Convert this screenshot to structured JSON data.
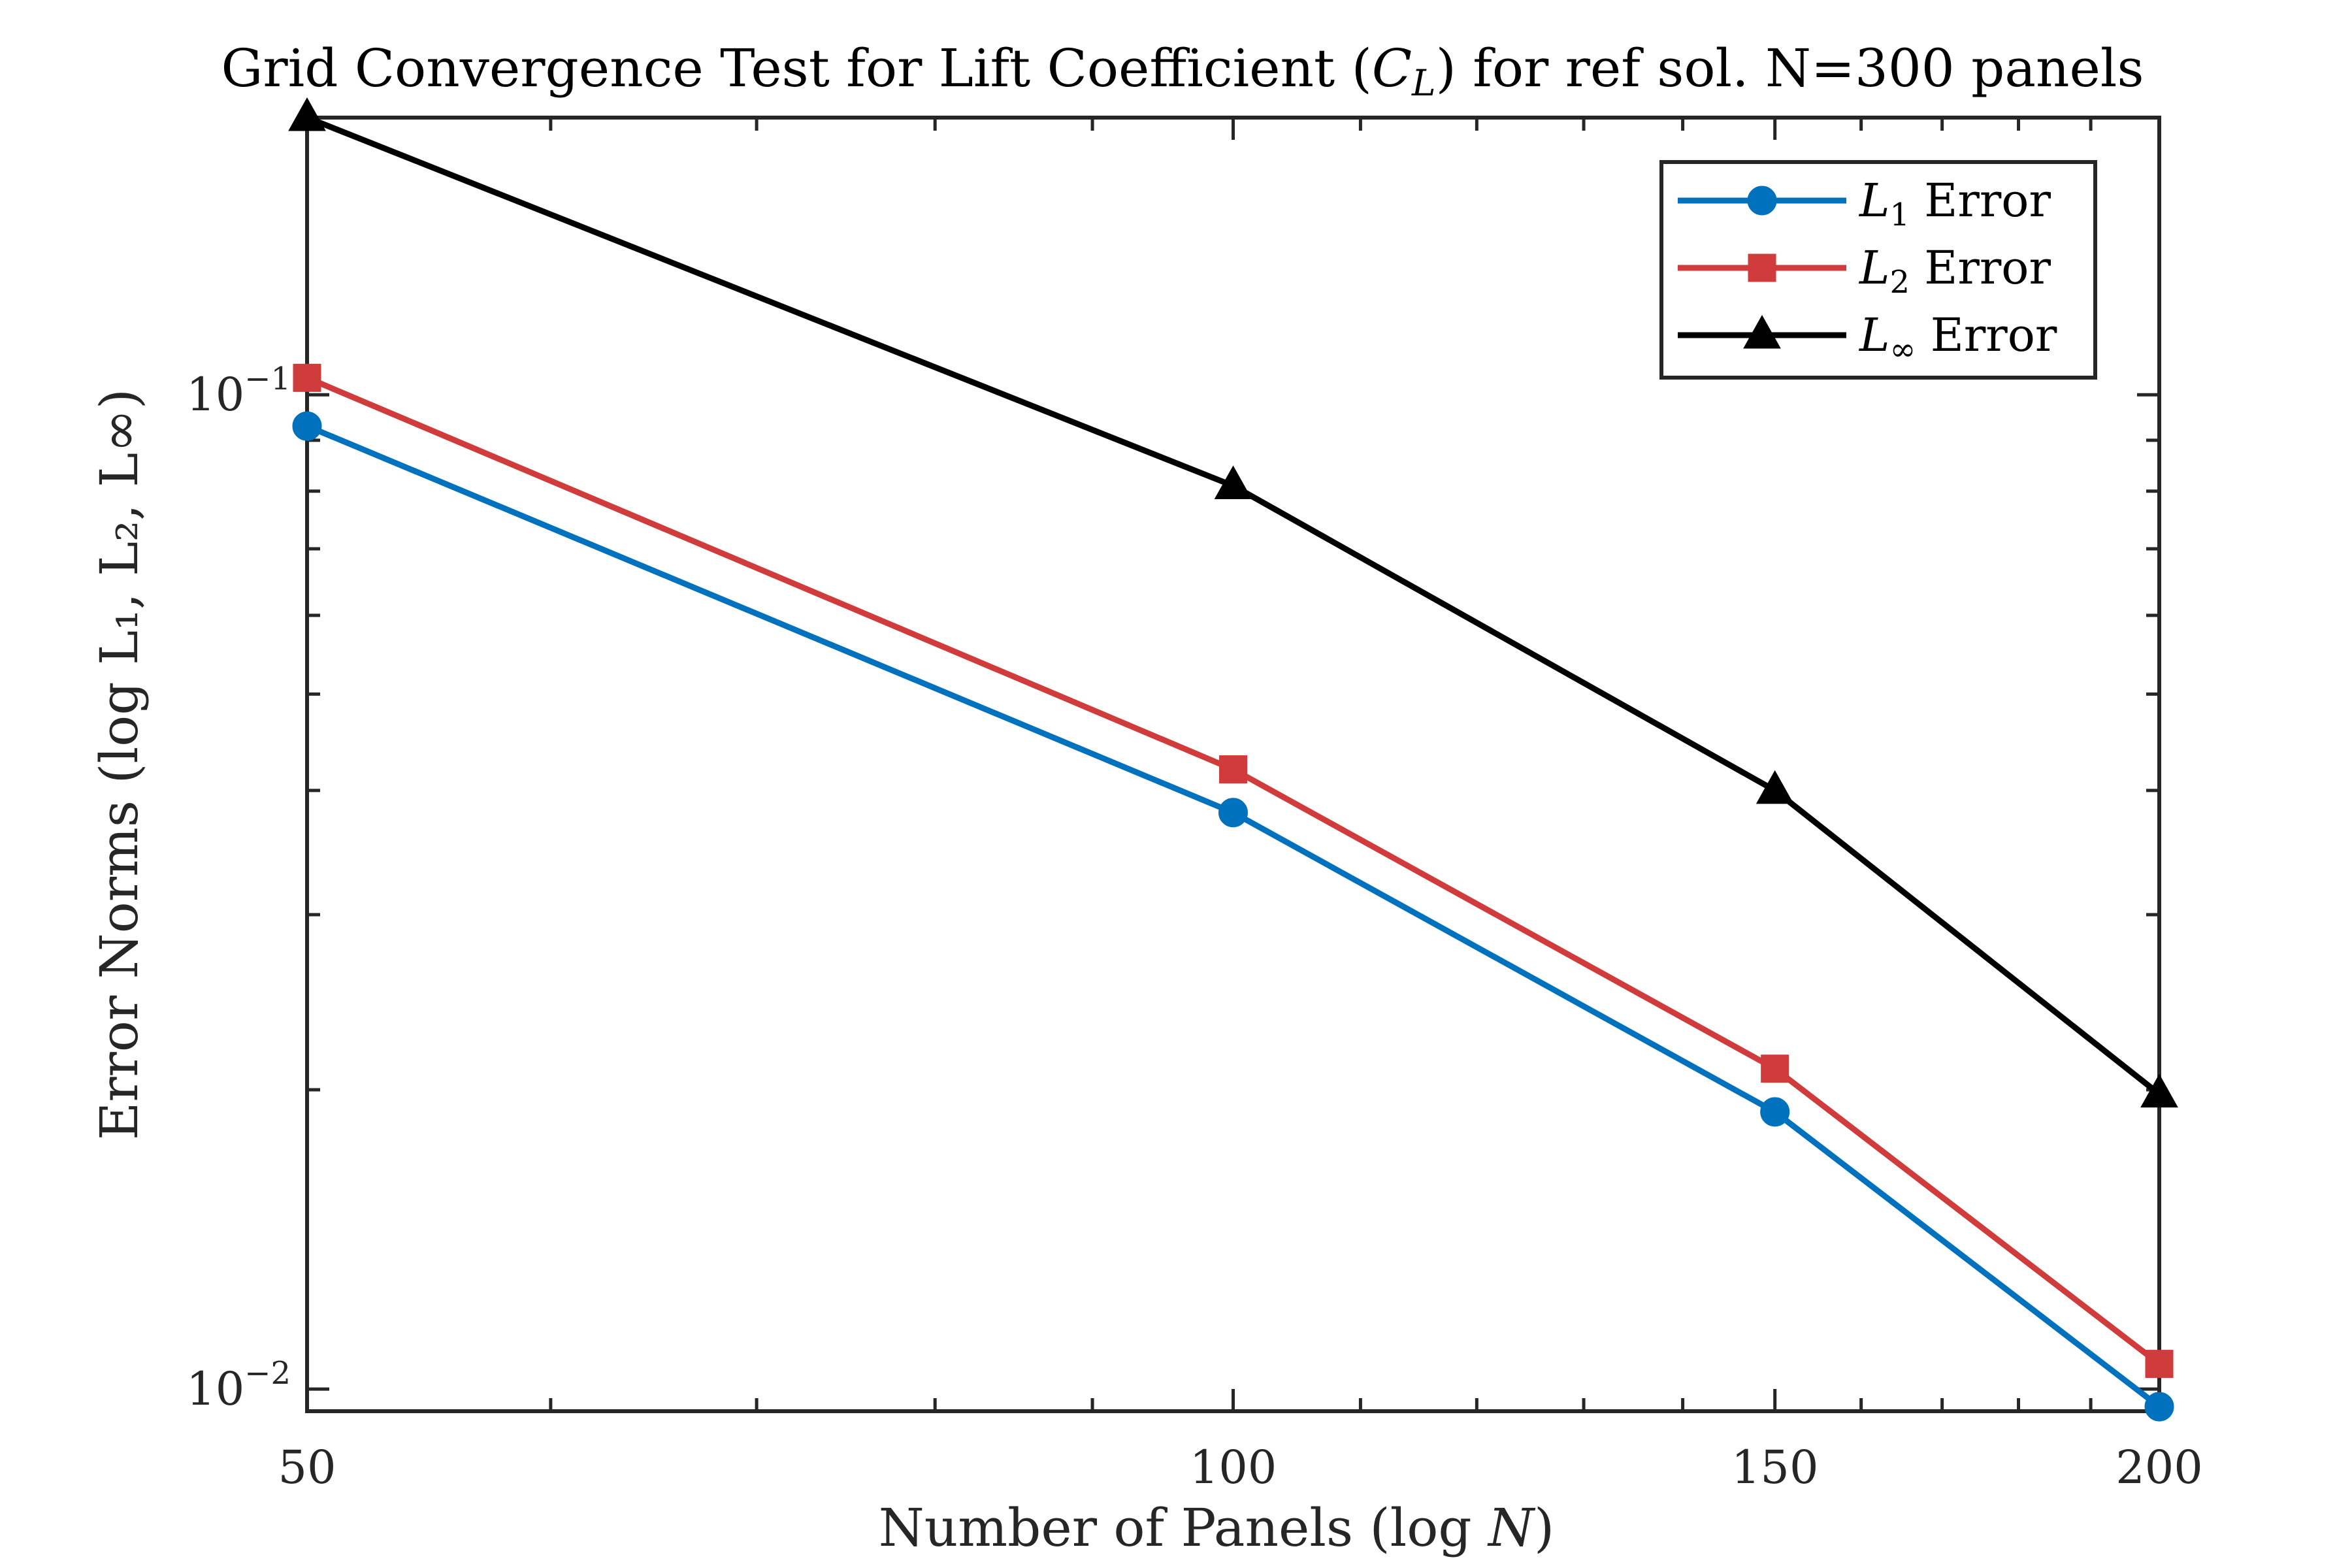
{
  "chart_data": {
    "type": "line",
    "title": "Grid Convergence Test for Lift Coefficient (C_L) for ref sol. N=300 panels",
    "title_parts": {
      "before": "Grid Convergence Test for Lift Coefficient (",
      "symbol": "C",
      "symbol_sub": "L",
      "after": ") for ref sol. N=300 panels"
    },
    "xlabel": "Number of Panels (log N)",
    "xlabel_parts": {
      "before": "Number of Panels (log ",
      "symbol": "N",
      "after": ")"
    },
    "ylabel": "Error Norms (log L1, L2, L∞)",
    "ylabel_text": "Error Norms (log L₁, L₂, L∞)",
    "x_scale": "log",
    "y_scale": "log",
    "xlim": [
      50,
      200
    ],
    "ylim": [
      0.0095,
      0.19
    ],
    "x": [
      50,
      100,
      150,
      200
    ],
    "x_tick_labels": [
      "50",
      "100",
      "150",
      "200"
    ],
    "y_ticks": [
      {
        "value": 0.1,
        "base": "10",
        "exp": "−1"
      },
      {
        "value": 0.01,
        "base": "10",
        "exp": "−2"
      }
    ],
    "grid": false,
    "legend_position": "top-right",
    "series": [
      {
        "name": "L1 Error",
        "name_main": "L",
        "name_sub": "1",
        "name_rest": " Error",
        "color": "#0072bd",
        "marker": "circle",
        "values": [
          0.093,
          0.038,
          0.019,
          0.0096
        ]
      },
      {
        "name": "L2 Error",
        "name_main": "L",
        "name_sub": "2",
        "name_rest": " Error",
        "color": "#d03b3b",
        "marker": "square",
        "values": [
          0.104,
          0.042,
          0.021,
          0.0106
        ]
      },
      {
        "name": "L∞ Error",
        "name_main": "L",
        "name_sub": "∞",
        "name_rest": " Error",
        "color": "#000000",
        "marker": "triangle",
        "values": [
          0.19,
          0.081,
          0.04,
          0.0198
        ]
      }
    ]
  }
}
